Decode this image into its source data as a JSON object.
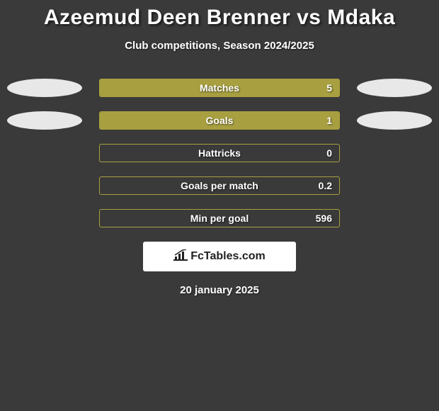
{
  "title": "Azeemud Deen Brenner vs Mdaka",
  "subtitle": "Club competitions, Season 2024/2025",
  "date": "20 january 2025",
  "logo_text": "FcTables.com",
  "colors": {
    "background": "#3a3a3a",
    "bar_fill": "#a8a040",
    "bar_border": "#a8a040",
    "ellipse": "#e8e8e8",
    "text": "#ffffff",
    "logo_bg": "#ffffff",
    "logo_text": "#222222"
  },
  "stats": [
    {
      "label": "Matches",
      "value": "5",
      "fill_pct": 100,
      "left_ellipse": true,
      "right_ellipse": true
    },
    {
      "label": "Goals",
      "value": "1",
      "fill_pct": 100,
      "left_ellipse": true,
      "right_ellipse": true
    },
    {
      "label": "Hattricks",
      "value": "0",
      "fill_pct": 0,
      "left_ellipse": false,
      "right_ellipse": false
    },
    {
      "label": "Goals per match",
      "value": "0.2",
      "fill_pct": 0,
      "left_ellipse": false,
      "right_ellipse": false
    },
    {
      "label": "Min per goal",
      "value": "596",
      "fill_pct": 0,
      "left_ellipse": false,
      "right_ellipse": false
    }
  ]
}
